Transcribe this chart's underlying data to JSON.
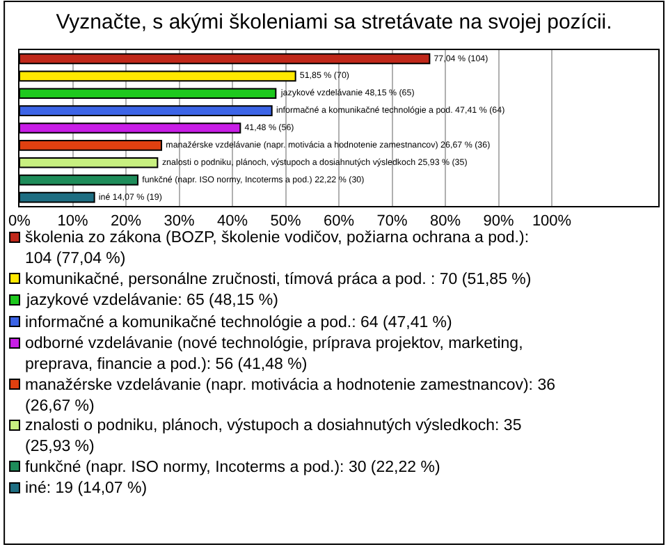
{
  "chart_data": {
    "type": "bar",
    "orientation": "horizontal",
    "title": "Vyznačte, s akými školeniami sa stretávate na svojej pozícii.",
    "categories": [
      null,
      null,
      null,
      null,
      null,
      null,
      null,
      null,
      null
    ],
    "series": [
      {
        "name": "školenia zo zákona (BOZP, školenie vodičov, požiarna ochrana a pod.): 104 (77,04 %)",
        "color": "#c0281a",
        "values": [
          77.04,
          null,
          null,
          null,
          null,
          null,
          null,
          null,
          null
        ],
        "value_labels": [
          "77,04 % (104)",
          null,
          null,
          null,
          null,
          null,
          null,
          null,
          null
        ]
      },
      {
        "name": "komunikačné, personálne zručnosti, tímová práca a pod. : 70 (51,85 %)",
        "color": "#ffe800",
        "values": [
          null,
          51.85,
          null,
          null,
          null,
          null,
          null,
          null,
          null
        ],
        "value_labels": [
          null,
          "51,85 % (70)",
          null,
          null,
          null,
          null,
          null,
          null,
          null
        ]
      },
      {
        "name": "jazykové vzdelávanie: 65 (48,15 %)",
        "color": "#1ec81e",
        "values": [
          null,
          null,
          48.15,
          null,
          null,
          null,
          null,
          null,
          null
        ],
        "value_labels": [
          null,
          null,
          "jazykové vzdelávanie 48,15 % (65)",
          null,
          null,
          null,
          null,
          null,
          null
        ]
      },
      {
        "name": "informačné a komunikačné technológie a pod.: 64 (47,41 %)",
        "color": "#3c64e6",
        "values": [
          null,
          null,
          null,
          47.41,
          null,
          null,
          null,
          null,
          null
        ],
        "value_labels": [
          null,
          null,
          null,
          "informačné a komunikačné technológie a pod. 47,41 % (64)",
          null,
          null,
          null,
          null,
          null
        ]
      },
      {
        "name": "odborné vzdelávanie (nové technológie, príprava projektov, marketing, preprava, financie a pod.): 56 (41,48 %)",
        "color": "#c81ee6",
        "values": [
          null,
          null,
          null,
          null,
          41.48,
          null,
          null,
          null,
          null
        ],
        "value_labels": [
          null,
          null,
          null,
          null,
          "41,48 % (56)",
          null,
          null,
          null,
          null
        ]
      },
      {
        "name": "manažérske vzdelávanie (napr. motivácia a hodnotenie zamestnancov): 36 (26,67 %)",
        "color": "#e04010",
        "values": [
          null,
          null,
          null,
          null,
          null,
          26.67,
          null,
          null,
          null
        ],
        "value_labels": [
          null,
          null,
          null,
          null,
          null,
          "manažérske vzdelávanie (napr. motivácia a hodnotenie zamestnancov) 26,67 % (36)",
          null,
          null,
          null
        ]
      },
      {
        "name": "znalosti o podniku, plánoch, výstupoch a dosiahnutých výsledkoch: 35 (25,93 %)",
        "color": "#c8f080",
        "values": [
          null,
          null,
          null,
          null,
          null,
          null,
          25.93,
          null,
          null
        ],
        "value_labels": [
          null,
          null,
          null,
          null,
          null,
          null,
          "znalosti o podniku, plánoch, výstupoch a dosiahnutých výsledkoch 25,93 % (35)",
          null,
          null
        ]
      },
      {
        "name": "funkčné (napr. ISO normy, Incoterms a pod.): 30 (22,22 %)",
        "color": "#1e8c5a",
        "values": [
          null,
          null,
          null,
          null,
          null,
          null,
          null,
          22.22,
          null
        ],
        "value_labels": [
          null,
          null,
          null,
          null,
          null,
          null,
          null,
          "funkčné (napr. ISO normy, Incoterms a pod.) 22,22 % (30)",
          null
        ]
      },
      {
        "name": "iné: 19 (14,07 %)",
        "color": "#1e6e82",
        "values": [
          null,
          null,
          null,
          null,
          null,
          null,
          null,
          null,
          14.07
        ],
        "value_labels": [
          null,
          null,
          null,
          null,
          null,
          null,
          null,
          null,
          "iné 14,07 % (19)"
        ]
      }
    ],
    "xlim": [
      0,
      120
    ],
    "xticks": [
      {
        "value": 0,
        "label": "0%"
      },
      {
        "value": 10,
        "label": "10%"
      },
      {
        "value": 20,
        "label": "20%"
      },
      {
        "value": 30,
        "label": "30%"
      },
      {
        "value": 40,
        "label": "40%"
      },
      {
        "value": 50,
        "label": "50%"
      },
      {
        "value": 60,
        "label": "60%"
      },
      {
        "value": 70,
        "label": "70%"
      },
      {
        "value": 80,
        "label": "80%"
      },
      {
        "value": 90,
        "label": "90%"
      },
      {
        "value": 100,
        "label": "100%"
      }
    ],
    "grid": "x",
    "legend": "bottom",
    "tick_labels": "x"
  }
}
